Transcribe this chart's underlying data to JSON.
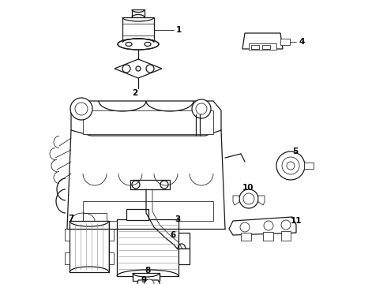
{
  "background_color": "#ffffff",
  "line_color": "#1a1a1a",
  "text_color": "#000000",
  "fig_width": 4.9,
  "fig_height": 3.6,
  "dpi": 100,
  "lw_main": 0.9,
  "lw_thin": 0.55,
  "label_fontsize": 7.5
}
